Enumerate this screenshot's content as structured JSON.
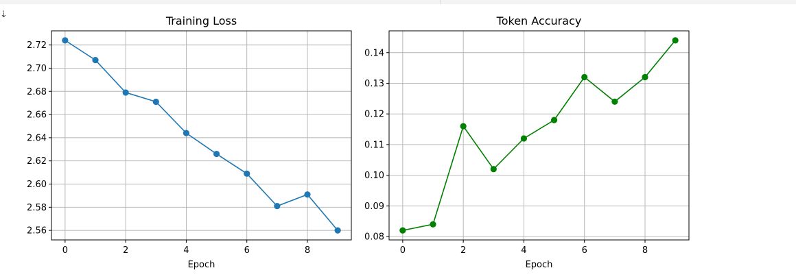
{
  "toolbar": {
    "output_toggle_icon": "collapse-output-icon"
  },
  "chart_data": [
    {
      "type": "line",
      "title": "Training Loss",
      "xlabel": "Epoch",
      "ylabel": "",
      "x": [
        0,
        1,
        2,
        3,
        4,
        5,
        6,
        7,
        8,
        9
      ],
      "series": [
        {
          "values": [
            2.724,
            2.707,
            2.679,
            2.671,
            2.644,
            2.626,
            2.609,
            2.581,
            2.591,
            2.56
          ],
          "color": "#1f77b4",
          "marker": "circle"
        }
      ],
      "xlim": [
        -0.45,
        9.45
      ],
      "ylim": [
        2.5518,
        2.7322
      ],
      "xticks": [
        0,
        2,
        4,
        6,
        8
      ],
      "xtick_labels": [
        "0",
        "2",
        "4",
        "6",
        "8"
      ],
      "yticks": [
        2.56,
        2.58,
        2.6,
        2.62,
        2.64,
        2.66,
        2.68,
        2.7,
        2.72
      ],
      "ytick_labels": [
        "2.56",
        "2.58",
        "2.60",
        "2.62",
        "2.64",
        "2.66",
        "2.68",
        "2.70",
        "2.72"
      ],
      "grid": true
    },
    {
      "type": "line",
      "title": "Token Accuracy",
      "xlabel": "Epoch",
      "ylabel": "",
      "x": [
        0,
        1,
        2,
        3,
        4,
        5,
        6,
        7,
        8,
        9
      ],
      "series": [
        {
          "values": [
            0.082,
            0.084,
            0.116,
            0.102,
            0.112,
            0.118,
            0.132,
            0.124,
            0.132,
            0.144
          ],
          "color": "#008000",
          "marker": "circle"
        }
      ],
      "xlim": [
        -0.45,
        9.45
      ],
      "ylim": [
        0.0789,
        0.1471
      ],
      "xticks": [
        0,
        2,
        4,
        6,
        8
      ],
      "xtick_labels": [
        "0",
        "2",
        "4",
        "6",
        "8"
      ],
      "yticks": [
        0.08,
        0.09,
        0.1,
        0.11,
        0.12,
        0.13,
        0.14
      ],
      "ytick_labels": [
        "0.08",
        "0.09",
        "0.10",
        "0.11",
        "0.12",
        "0.13",
        "0.14"
      ],
      "grid": true
    }
  ]
}
